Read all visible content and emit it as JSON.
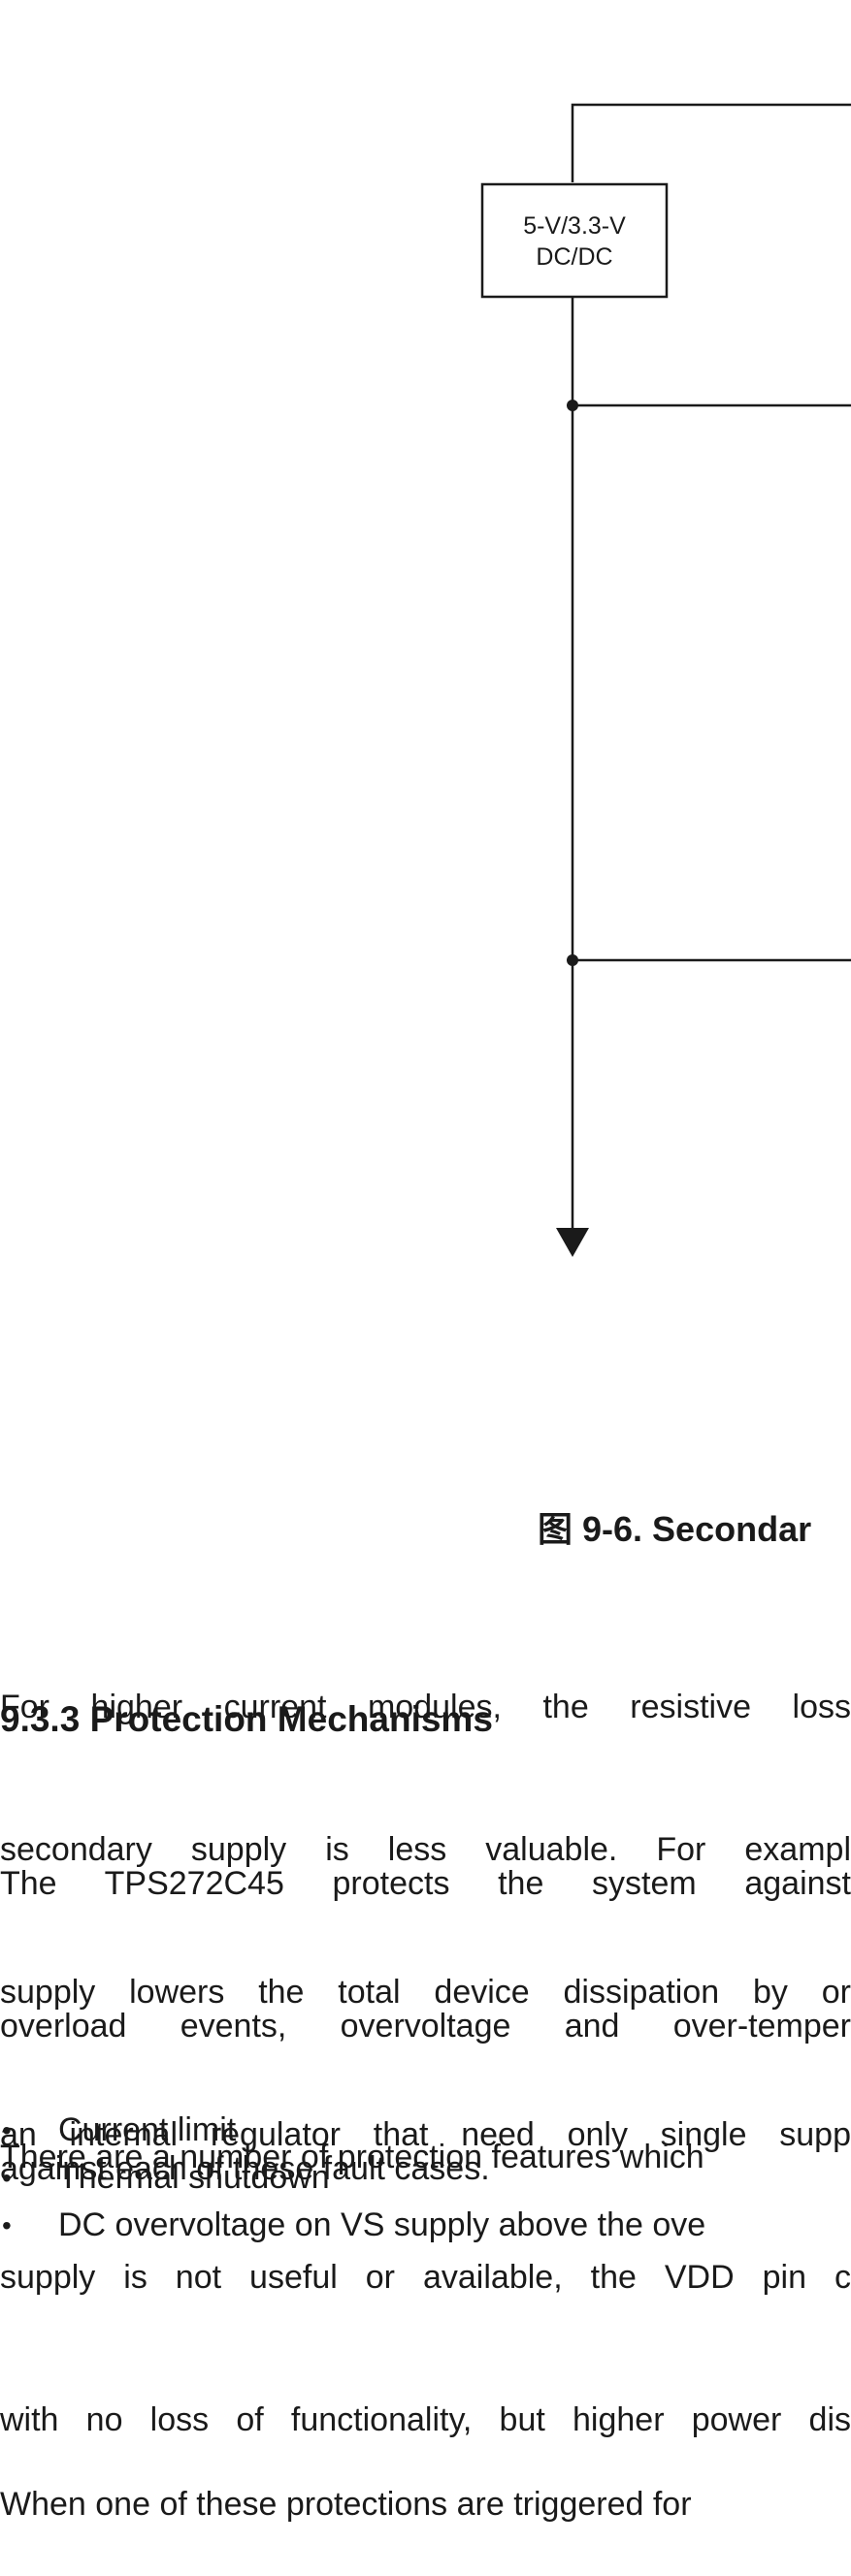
{
  "diagram": {
    "block_label_line1": "5-V/3.3-V",
    "block_label_line2": "DC/DC"
  },
  "figure": {
    "caption": "图 9-6. Secondar"
  },
  "para1": {
    "lines": [
      "For higher current modules, the resistive loss",
      "secondary supply is less valuable. For exampl",
      "supply lowers the total device dissipation by or",
      "an internal regulator that need only single supp",
      "supply is not useful or available, the VDD pin c",
      "with no loss of functionality, but higher power dis"
    ]
  },
  "section": {
    "heading": "9.3.3 Protection Mechanisms"
  },
  "para2": {
    "lines": [
      "The TPS272C45 protects the system against",
      "overload events, overvoltage and over-temper",
      "against each of these fault cases."
    ]
  },
  "para3": {
    "text": "There are a number of protection features which"
  },
  "bullets": {
    "marker": "•",
    "items": [
      "Current limit",
      "Thermal shutdown",
      "DC overvoltage on VS supply above the ove"
    ]
  },
  "para4": {
    "text": "When one of these protections are triggered for"
  }
}
